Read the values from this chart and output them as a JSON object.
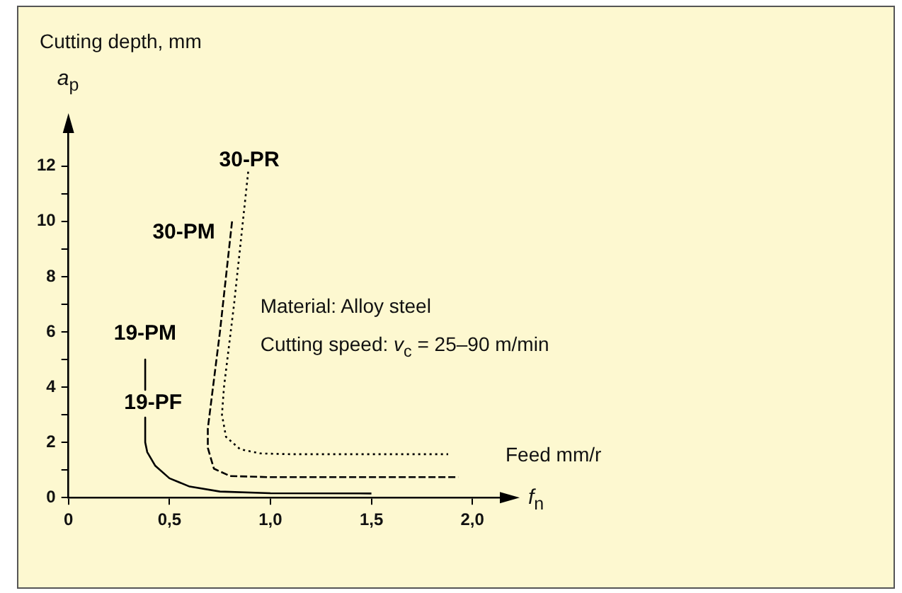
{
  "chart_data": {
    "type": "line",
    "xlabel": "Feed mm/r",
    "ylabel": "Cutting depth, mm",
    "annotations": [
      "a$_{p}$",
      "f$_{n}$",
      "Material: Alloy steel",
      "Cutting speed: v$_{c}$ = 25–90 m/min"
    ],
    "xlim": [
      0,
      2.15
    ],
    "ylim": [
      0,
      13.3
    ],
    "xticks": [
      0,
      {
        "value": 0.5,
        "label": "0,5"
      },
      {
        "value": 1.0,
        "label": "1,0"
      },
      {
        "value": 1.5,
        "label": "1,5"
      },
      {
        "value": 2.0,
        "label": "2,0"
      }
    ],
    "yticks": [
      0,
      {
        "value": 1,
        "label": null
      },
      2,
      {
        "value": 3,
        "label": null
      },
      4,
      {
        "value": 5,
        "label": null
      },
      6,
      {
        "value": 7,
        "label": null
      },
      8,
      {
        "value": 9,
        "label": null
      },
      10,
      {
        "value": 11,
        "label": null
      },
      12
    ],
    "grid": false,
    "legend": false,
    "marker": "none",
    "series": [
      {
        "name": "30-PR",
        "color": "#000000",
        "line_style": "dotted",
        "x": [
          0.89,
          0.82,
          0.77,
          0.76,
          0.78,
          0.85,
          0.95,
          1.1,
          1.88
        ],
        "values": [
          11.8,
          7.0,
          4.0,
          3.0,
          2.2,
          1.75,
          1.6,
          1.57,
          1.57
        ]
      },
      {
        "name": "30-PM",
        "color": "#000000",
        "line_style": "dashed",
        "x": [
          0.81,
          0.75,
          0.69,
          0.69,
          0.72,
          0.8,
          1.0,
          1.93
        ],
        "values": [
          10.0,
          6.0,
          2.5,
          1.8,
          1.05,
          0.78,
          0.74,
          0.74
        ]
      },
      {
        "name": "19-PM",
        "color": "#000000",
        "line_style": "solid",
        "x": [
          0.38,
          0.38
        ],
        "values": [
          5.0,
          3.9
        ]
      },
      {
        "name": "19-PF",
        "color": "#000000",
        "line_style": "solid",
        "x": [
          0.38,
          0.38,
          0.39,
          0.43,
          0.5,
          0.6,
          0.75,
          1.0,
          1.5
        ],
        "values": [
          2.9,
          2.0,
          1.65,
          1.15,
          0.7,
          0.4,
          0.22,
          0.16,
          0.15
        ]
      }
    ]
  }
}
